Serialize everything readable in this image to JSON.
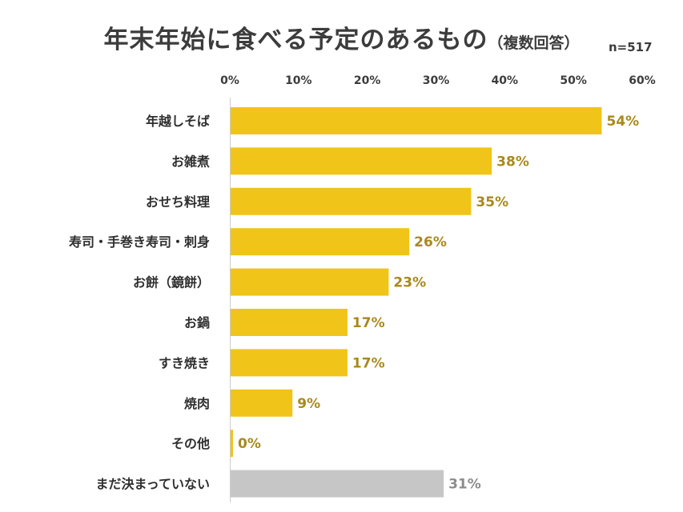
{
  "chart_data": {
    "type": "bar",
    "orientation": "horizontal",
    "title": "年末年始に食べる予定のあるもの",
    "subtitle": "（複数回答）",
    "sample_size": "n=517",
    "categories": [
      "年越しそば",
      "お雑煮",
      "おせち料理",
      "寿司・手巻き寿司・刺身",
      "お餅（鏡餅）",
      "お鍋",
      "すき焼き",
      "焼肉",
      "その他",
      "まだ決まっていない"
    ],
    "values": [
      54,
      38,
      35,
      26,
      23,
      17,
      17,
      9,
      0,
      31
    ],
    "value_labels": [
      "54%",
      "38%",
      "35%",
      "26%",
      "23%",
      "17%",
      "17%",
      "9%",
      "0%",
      "31%"
    ],
    "x_ticks": [
      "0%",
      "10%",
      "20%",
      "30%",
      "40%",
      "50%",
      "60%"
    ],
    "xlim": [
      0,
      60
    ],
    "grid": false,
    "colors": {
      "bar": "#f0c419",
      "bar_undecided": "#c6c6c6",
      "label": "#a8891c",
      "label_undecided": "#8c8c8c",
      "axis": "#cccccc"
    }
  }
}
